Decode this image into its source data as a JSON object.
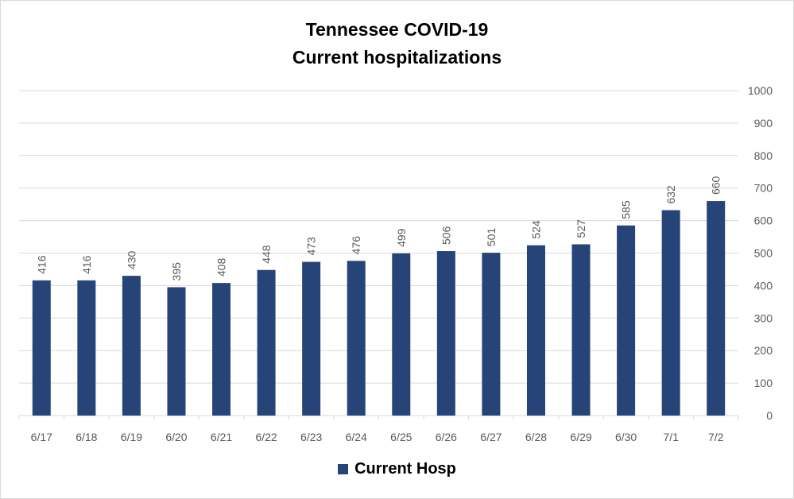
{
  "chart_data": {
    "type": "bar",
    "title": "Tennessee COVID-19",
    "subtitle": "Current hospitalizations",
    "categories": [
      "6/17",
      "6/18",
      "6/19",
      "6/20",
      "6/21",
      "6/22",
      "6/23",
      "6/24",
      "6/25",
      "6/26",
      "6/27",
      "6/28",
      "6/29",
      "6/30",
      "7/1",
      "7/2"
    ],
    "series": [
      {
        "name": "Current Hosp",
        "values": [
          416,
          416,
          430,
          395,
          408,
          448,
          473,
          476,
          499,
          506,
          501,
          524,
          527,
          585,
          632,
          660
        ]
      }
    ],
    "ylim": [
      0,
      1000
    ],
    "yticks": [
      0,
      100,
      200,
      300,
      400,
      500,
      600,
      700,
      800,
      900,
      1000
    ],
    "y_axis_side": "right",
    "grid": true,
    "legend_position": "bottom",
    "data_labels": true,
    "bar_color": "#264478",
    "gridline_color": "#d9d9d9",
    "text_color": "#595959"
  }
}
